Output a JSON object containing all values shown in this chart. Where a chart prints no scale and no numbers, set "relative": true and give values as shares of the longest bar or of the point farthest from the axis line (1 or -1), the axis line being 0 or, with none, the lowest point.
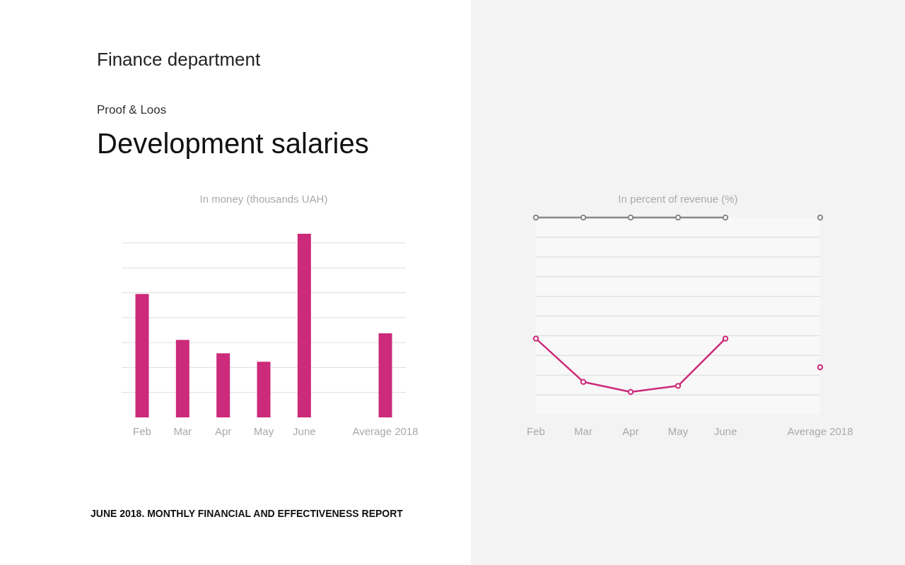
{
  "chart_data": [
    {
      "type": "bar",
      "title": "In money (thousands UAH)",
      "annotations": [
        "Finance department",
        "Proof & Loos",
        "Development salaries",
        "JUNE 2018. MONTHLY FINANCIAL AND EFFECTIVENESS REPORT"
      ],
      "categories": [
        "Feb",
        "Mar",
        "Apr",
        "May",
        "June",
        null,
        "Average 2018"
      ],
      "values": [
        0.672,
        0.422,
        0.349,
        0.303,
        1,
        null,
        0.458
      ],
      "color": "#cc2a7a",
      "relative": true,
      "grid": true
    },
    {
      "type": "line",
      "title": "In percent of revenue (%)",
      "categories": [
        "Feb",
        "Mar",
        "Apr",
        "May",
        "June",
        null,
        "Average 2018"
      ],
      "series": [
        {
          "color": "#888888",
          "values": [
            1,
            1,
            1,
            1,
            1,
            null,
            1
          ]
        },
        {
          "color": "#cc2a7a",
          "values": [
            0.306,
            0.058,
            0,
            0.035,
            0.306,
            null,
            0.142
          ]
        }
      ],
      "relative": true,
      "grid": true,
      "marker": "circle"
    }
  ]
}
